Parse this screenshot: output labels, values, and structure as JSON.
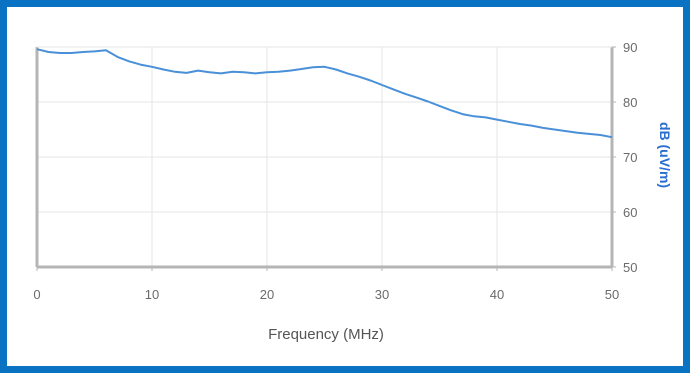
{
  "chart_data": {
    "type": "line",
    "title": "",
    "xlabel": "Frequency (MHz)",
    "ylabel": "dB (uV/m)",
    "xlim": [
      0,
      50
    ],
    "ylim": [
      50,
      90
    ],
    "xticks": [
      0,
      10,
      20,
      30,
      40,
      50
    ],
    "yticks": [
      50,
      60,
      70,
      80,
      90
    ],
    "y_axis_side": "right",
    "grid": true,
    "colors": {
      "line": "#4a90d9",
      "grid": "#e6e6e6",
      "axis": "#b5b5b5",
      "frame": "#0a72c2"
    },
    "series": [
      {
        "x": [
          0,
          1,
          2,
          3,
          4,
          5,
          6,
          7,
          8,
          9,
          10,
          11,
          12,
          13,
          14,
          15,
          16,
          17,
          18,
          19,
          20,
          21,
          22,
          23,
          24,
          25,
          26,
          27,
          28,
          29,
          30,
          31,
          32,
          33,
          34,
          35,
          36,
          37,
          38,
          39,
          40,
          41,
          42,
          43,
          44,
          45,
          46,
          47,
          48,
          49,
          50
        ],
        "values": [
          89.6,
          89.1,
          88.9,
          88.9,
          89.1,
          89.2,
          89.4,
          88.2,
          87.4,
          86.8,
          86.4,
          85.9,
          85.5,
          85.3,
          85.7,
          85.4,
          85.2,
          85.5,
          85.4,
          85.2,
          85.4,
          85.5,
          85.7,
          86.0,
          86.3,
          86.4,
          85.9,
          85.2,
          84.6,
          83.9,
          83.1,
          82.3,
          81.5,
          80.8,
          80.1,
          79.3,
          78.5,
          77.8,
          77.4,
          77.2,
          76.8,
          76.4,
          76.0,
          75.7,
          75.3,
          75.0,
          74.7,
          74.4,
          74.2,
          74.0,
          73.6
        ]
      }
    ]
  }
}
